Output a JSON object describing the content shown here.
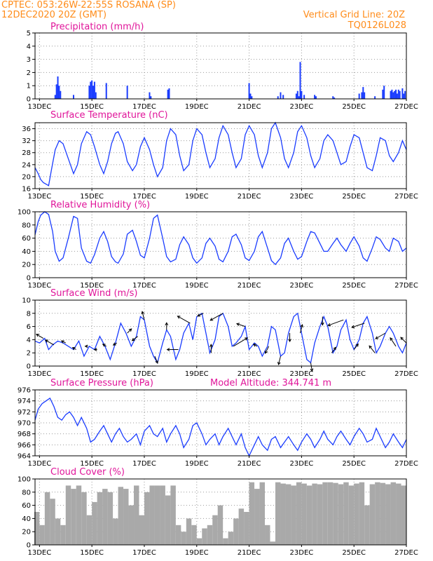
{
  "header": {
    "line1_left": "CPTEC:   053:26W-22:55S   ROSANA (SP)",
    "line2_left": "12DEC2020 20Z (GMT)",
    "line1_right": "Vertical Grid Line: 20Z",
    "line2_right": "TQ0126L028"
  },
  "colors": {
    "header": "#ff8c1a",
    "titles": "#e0159a",
    "precip": "#1a3cff",
    "line": "#1a3cff",
    "cloud": "#a9a9a9",
    "grid": "#999999"
  },
  "chart_data": [
    {
      "type": "bar",
      "title": "Precipitation (mm/h)",
      "x_range_days": [
        12.83,
        27.0
      ],
      "ylim": [
        0,
        5
      ],
      "yticks": [
        0,
        1,
        2,
        3,
        4,
        5
      ],
      "xtick_labels": [
        "13DEC",
        "15DEC",
        "17DEC",
        "19DEC",
        "21DEC",
        "23DEC",
        "25DEC",
        "27DEC"
      ],
      "x": [
        13.6,
        13.65,
        13.7,
        13.75,
        13.8,
        14.3,
        14.9,
        14.95,
        15.0,
        15.05,
        15.1,
        15.15,
        15.55,
        16.35,
        17.2,
        17.25,
        17.9,
        17.95,
        21.0,
        21.05,
        21.1,
        22.1,
        22.2,
        22.3,
        22.8,
        22.85,
        22.9,
        22.95,
        23.0,
        23.1,
        23.5,
        23.55,
        24.2,
        24.25,
        25.2,
        25.3,
        25.35,
        25.4,
        25.8,
        26.1,
        26.15,
        26.4,
        26.45,
        26.5,
        26.55,
        26.6,
        26.65,
        26.7,
        26.75,
        26.85,
        26.9,
        26.95
      ],
      "values": [
        0.3,
        1.1,
        1.7,
        1.0,
        0.6,
        0.3,
        1.0,
        1.3,
        1.4,
        1.0,
        1.3,
        0.5,
        1.2,
        1.0,
        0.5,
        0.2,
        0.7,
        0.8,
        1.2,
        0.4,
        0.2,
        0.2,
        0.5,
        0.3,
        0.4,
        0.6,
        0.2,
        2.8,
        0.6,
        0.3,
        0.3,
        0.2,
        0.2,
        0.1,
        0.4,
        0.5,
        0.9,
        0.5,
        0.2,
        0.7,
        1.0,
        0.6,
        0.7,
        0.5,
        0.6,
        0.7,
        0.4,
        0.7,
        0.6,
        0.8,
        0.4,
        0.6
      ]
    },
    {
      "type": "line",
      "title": "Surface Temperature (nC)",
      "x_range_days": [
        12.83,
        27.0
      ],
      "ylim": [
        16,
        38
      ],
      "yticks": [
        16,
        20,
        24,
        28,
        32,
        36
      ],
      "xtick_labels": [
        "13DEC",
        "15DEC",
        "17DEC",
        "19DEC",
        "21DEC",
        "23DEC",
        "25DEC",
        "27DEC"
      ],
      "x": [
        12.83,
        12.95,
        13.05,
        13.15,
        13.25,
        13.35,
        13.45,
        13.6,
        13.75,
        13.9,
        14.1,
        14.3,
        14.45,
        14.6,
        14.8,
        14.95,
        15.1,
        15.3,
        15.45,
        15.6,
        15.75,
        15.9,
        16.0,
        16.2,
        16.35,
        16.55,
        16.7,
        16.85,
        17.0,
        17.2,
        17.35,
        17.5,
        17.7,
        17.85,
        18.0,
        18.2,
        18.35,
        18.5,
        18.7,
        18.85,
        19.0,
        19.2,
        19.35,
        19.5,
        19.7,
        19.85,
        20.0,
        20.2,
        20.35,
        20.5,
        20.7,
        20.85,
        21.0,
        21.2,
        21.35,
        21.5,
        21.7,
        21.85,
        22.0,
        22.2,
        22.35,
        22.5,
        22.7,
        22.85,
        23.0,
        23.2,
        23.35,
        23.5,
        23.7,
        23.85,
        24.0,
        24.2,
        24.35,
        24.5,
        24.7,
        24.85,
        25.0,
        25.2,
        25.35,
        25.5,
        25.7,
        25.85,
        26.0,
        26.2,
        26.35,
        26.5,
        26.7,
        26.85,
        27.0
      ],
      "values": [
        23,
        21,
        19,
        18,
        17.5,
        17,
        22,
        29,
        32,
        31,
        26,
        21,
        24,
        31,
        35,
        34,
        30,
        24,
        21,
        25,
        31,
        34.5,
        35,
        31,
        25,
        22,
        24,
        30,
        33,
        29,
        24,
        20,
        23,
        32,
        36,
        34,
        27,
        22,
        24,
        32,
        36,
        34,
        28,
        23,
        26,
        33,
        37,
        34,
        28,
        23,
        26,
        34,
        37,
        34,
        27,
        23,
        28,
        36,
        38,
        33,
        26,
        23,
        28,
        35,
        37,
        33,
        27,
        23,
        26,
        32,
        34,
        32,
        28,
        24,
        25,
        30,
        34,
        33,
        28,
        23,
        22,
        27,
        33,
        32,
        27,
        25,
        28,
        32,
        29
      ]
    },
    {
      "type": "line",
      "title": "Relative Humidity (%)",
      "x_range_days": [
        12.83,
        27.0
      ],
      "ylim": [
        0,
        100
      ],
      "yticks": [
        0,
        20,
        40,
        60,
        80,
        100
      ],
      "xtick_labels": [
        "13DEC",
        "15DEC",
        "17DEC",
        "19DEC",
        "21DEC",
        "23DEC",
        "25DEC",
        "27DEC"
      ],
      "x": [
        12.83,
        12.95,
        13.05,
        13.2,
        13.35,
        13.5,
        13.6,
        13.75,
        13.9,
        14.1,
        14.3,
        14.45,
        14.6,
        14.8,
        14.95,
        15.1,
        15.3,
        15.45,
        15.6,
        15.75,
        15.9,
        16.0,
        16.2,
        16.35,
        16.55,
        16.7,
        16.85,
        17.0,
        17.2,
        17.35,
        17.5,
        17.7,
        17.85,
        18.0,
        18.2,
        18.35,
        18.5,
        18.7,
        18.85,
        19.0,
        19.2,
        19.35,
        19.5,
        19.7,
        19.85,
        20.0,
        20.2,
        20.35,
        20.5,
        20.7,
        20.85,
        21.0,
        21.2,
        21.35,
        21.5,
        21.7,
        21.85,
        22.0,
        22.2,
        22.35,
        22.5,
        22.7,
        22.85,
        23.0,
        23.2,
        23.35,
        23.5,
        23.7,
        23.85,
        24.0,
        24.2,
        24.35,
        24.5,
        24.7,
        24.85,
        25.0,
        25.2,
        25.35,
        25.5,
        25.7,
        25.85,
        26.0,
        26.2,
        26.35,
        26.5,
        26.7,
        26.85,
        27.0
      ],
      "values": [
        65,
        85,
        95,
        100,
        96,
        70,
        40,
        25,
        30,
        60,
        93,
        90,
        45,
        25,
        22,
        35,
        60,
        70,
        55,
        32,
        24,
        22,
        36,
        66,
        72,
        55,
        34,
        30,
        60,
        90,
        95,
        60,
        32,
        24,
        28,
        50,
        62,
        50,
        30,
        22,
        30,
        52,
        60,
        48,
        28,
        24,
        40,
        62,
        66,
        50,
        30,
        26,
        40,
        62,
        70,
        45,
        26,
        20,
        30,
        52,
        60,
        40,
        28,
        32,
        55,
        70,
        68,
        52,
        40,
        40,
        52,
        60,
        50,
        40,
        52,
        62,
        48,
        30,
        25,
        45,
        62,
        58,
        45,
        40,
        60,
        55,
        40,
        45
      ]
    },
    {
      "type": "line",
      "title": "Surface Wind (m/s)",
      "x_range_days": [
        12.83,
        27.0
      ],
      "ylim": [
        0,
        10
      ],
      "yticks": [
        0,
        2,
        4,
        6,
        8,
        10
      ],
      "xtick_labels": [
        "13DEC",
        "15DEC",
        "17DEC",
        "19DEC",
        "21DEC",
        "23DEC",
        "25DEC",
        "27DEC"
      ],
      "x": [
        12.83,
        13.0,
        13.2,
        13.35,
        13.5,
        13.7,
        13.9,
        14.1,
        14.3,
        14.5,
        14.7,
        14.9,
        15.1,
        15.3,
        15.5,
        15.7,
        15.9,
        16.1,
        16.3,
        16.5,
        16.7,
        16.85,
        17.0,
        17.2,
        17.35,
        17.5,
        17.7,
        17.85,
        18.0,
        18.2,
        18.35,
        18.5,
        18.7,
        18.85,
        19.0,
        19.2,
        19.35,
        19.5,
        19.7,
        19.85,
        20.0,
        20.2,
        20.35,
        20.5,
        20.7,
        20.85,
        21.0,
        21.2,
        21.35,
        21.5,
        21.7,
        21.85,
        22.0,
        22.2,
        22.35,
        22.5,
        22.7,
        22.85,
        23.0,
        23.2,
        23.35,
        23.5,
        23.7,
        23.85,
        24.0,
        24.2,
        24.35,
        24.5,
        24.7,
        24.85,
        25.0,
        25.2,
        25.35,
        25.5,
        25.7,
        25.85,
        26.0,
        26.2,
        26.35,
        26.5,
        26.7,
        26.85,
        27.0
      ],
      "values": [
        3.8,
        3.5,
        4.2,
        2.5,
        3.2,
        3.8,
        3.5,
        3.0,
        2.5,
        3.8,
        1.5,
        3.0,
        2.5,
        4.5,
        3.0,
        1.0,
        3.5,
        6.5,
        5.0,
        3.0,
        4.5,
        7.5,
        7.0,
        3.0,
        1.5,
        0.5,
        3.5,
        5.5,
        4.5,
        1.0,
        2.5,
        5.0,
        6.5,
        4.0,
        7.5,
        8.0,
        5.0,
        2.0,
        4.0,
        7.5,
        8.0,
        6.0,
        3.0,
        3.5,
        4.5,
        6.0,
        2.5,
        3.5,
        3.0,
        1.5,
        3.0,
        6.0,
        5.5,
        1.5,
        2.0,
        5.0,
        7.5,
        8.0,
        5.0,
        1.0,
        0.5,
        3.5,
        6.0,
        7.5,
        6.0,
        2.0,
        3.0,
        5.5,
        7.0,
        4.0,
        2.5,
        4.0,
        6.5,
        7.5,
        5.0,
        2.0,
        3.0,
        5.0,
        6.0,
        5.0,
        3.0,
        2.0,
        3.5
      ]
    },
    {
      "type": "line",
      "title": "Surface Pressure (hPa)",
      "annotation": "Model Altitude: 344.741  m",
      "x_range_days": [
        12.83,
        27.0
      ],
      "ylim": [
        964,
        976
      ],
      "yticks": [
        964,
        966,
        968,
        970,
        972,
        974,
        976
      ],
      "xtick_labels": [
        "13DEC",
        "15DEC",
        "17DEC",
        "19DEC",
        "21DEC",
        "23DEC",
        "25DEC",
        "27DEC"
      ],
      "x": [
        12.83,
        12.95,
        13.1,
        13.25,
        13.4,
        13.55,
        13.7,
        13.85,
        14.0,
        14.15,
        14.3,
        14.45,
        14.6,
        14.8,
        14.95,
        15.1,
        15.3,
        15.45,
        15.6,
        15.75,
        15.9,
        16.05,
        16.2,
        16.35,
        16.5,
        16.7,
        16.85,
        17.0,
        17.2,
        17.35,
        17.5,
        17.7,
        17.85,
        18.0,
        18.2,
        18.35,
        18.5,
        18.7,
        18.85,
        19.0,
        19.2,
        19.35,
        19.5,
        19.7,
        19.85,
        20.0,
        20.2,
        20.35,
        20.5,
        20.7,
        20.85,
        21.0,
        21.2,
        21.35,
        21.5,
        21.7,
        21.85,
        22.0,
        22.2,
        22.35,
        22.5,
        22.7,
        22.85,
        23.0,
        23.2,
        23.35,
        23.5,
        23.7,
        23.85,
        24.0,
        24.2,
        24.35,
        24.5,
        24.7,
        24.85,
        25.0,
        25.2,
        25.35,
        25.5,
        25.7,
        25.85,
        26.0,
        26.2,
        26.35,
        26.5,
        26.7,
        26.85,
        27.0
      ],
      "values": [
        970.5,
        972.5,
        973.5,
        974.0,
        974.5,
        973.0,
        971.0,
        970.5,
        971.5,
        972.0,
        971.0,
        969.5,
        971.0,
        969.0,
        966.5,
        967.0,
        968.5,
        969.5,
        968.0,
        966.5,
        968.0,
        969.0,
        967.5,
        966.5,
        967.0,
        968.0,
        966.0,
        968.5,
        969.5,
        968.0,
        967.5,
        969.0,
        966.5,
        968.0,
        969.5,
        968.0,
        965.5,
        967.0,
        969.5,
        970.0,
        968.0,
        966.0,
        967.0,
        968.0,
        966.0,
        967.5,
        969.0,
        967.5,
        966.0,
        968.0,
        965.5,
        964.0,
        966.0,
        967.5,
        966.0,
        965.0,
        967.0,
        967.5,
        965.5,
        966.5,
        967.5,
        966.0,
        965.0,
        966.5,
        968.0,
        967.0,
        965.5,
        967.0,
        968.5,
        967.0,
        966.0,
        967.5,
        968.5,
        967.0,
        966.0,
        967.5,
        969.0,
        968.0,
        966.5,
        967.0,
        969.0,
        967.5,
        965.5,
        966.5,
        968.0,
        966.5,
        965.5,
        967.0
      ]
    },
    {
      "type": "bar",
      "title": "Cloud Cover (%)",
      "x_range_days": [
        12.83,
        27.0
      ],
      "ylim": [
        0,
        100
      ],
      "yticks": [
        0,
        20,
        40,
        60,
        80,
        100
      ],
      "xtick_labels": [
        "13DEC",
        "15DEC",
        "17DEC",
        "19DEC",
        "21DEC",
        "23DEC",
        "25DEC",
        "27DEC"
      ],
      "x": [
        12.9,
        13.1,
        13.3,
        13.5,
        13.7,
        13.9,
        14.1,
        14.3,
        14.5,
        14.7,
        14.9,
        15.1,
        15.3,
        15.5,
        15.7,
        15.9,
        16.1,
        16.3,
        16.5,
        16.7,
        16.9,
        17.1,
        17.3,
        17.5,
        17.7,
        17.9,
        18.1,
        18.3,
        18.5,
        18.7,
        18.9,
        19.1,
        19.3,
        19.5,
        19.7,
        19.9,
        20.1,
        20.3,
        20.5,
        20.7,
        20.9,
        21.1,
        21.3,
        21.5,
        21.7,
        21.9,
        22.1,
        22.3,
        22.5,
        22.7,
        22.9,
        23.1,
        23.3,
        23.5,
        23.7,
        23.9,
        24.1,
        24.3,
        24.5,
        24.7,
        24.9,
        25.1,
        25.3,
        25.5,
        25.7,
        25.9,
        26.1,
        26.3,
        26.5,
        26.7,
        26.9
      ],
      "values": [
        50,
        30,
        80,
        70,
        40,
        30,
        90,
        85,
        90,
        80,
        45,
        65,
        80,
        85,
        80,
        40,
        88,
        85,
        60,
        90,
        45,
        80,
        90,
        90,
        90,
        75,
        90,
        30,
        20,
        40,
        30,
        10,
        25,
        30,
        45,
        60,
        10,
        20,
        40,
        55,
        50,
        95,
        85,
        95,
        30,
        5,
        95,
        93,
        92,
        90,
        95,
        93,
        90,
        93,
        92,
        95,
        95,
        94,
        92,
        95,
        90,
        93,
        95,
        60,
        92,
        95,
        94,
        92,
        95,
        93,
        90
      ]
    }
  ],
  "wind_barbs": [
    {
      "x": 13.15,
      "dx": -10,
      "dy": -6
    },
    {
      "x": 13.55,
      "dx": -12,
      "dy": -7
    },
    {
      "x": 14.0,
      "dx": -6,
      "dy": -3
    },
    {
      "x": 14.4,
      "dx": -5,
      "dy": -3
    },
    {
      "x": 14.85,
      "dx": -4,
      "dy": 0
    },
    {
      "x": 15.2,
      "dx": -4,
      "dy": 0
    },
    {
      "x": 15.55,
      "dx": -5,
      "dy": -3
    },
    {
      "x": 15.95,
      "dx": -5,
      "dy": 3
    },
    {
      "x": 16.35,
      "dx": 6,
      "dy": -6
    },
    {
      "x": 16.75,
      "dx": -8,
      "dy": 6
    },
    {
      "x": 17.0,
      "dx": -3,
      "dy": -12
    },
    {
      "x": 17.4,
      "dx": 4,
      "dy": 10
    },
    {
      "x": 17.85,
      "dx": 0,
      "dy": -10
    },
    {
      "x": 18.3,
      "dx": -16,
      "dy": 0
    },
    {
      "x": 18.75,
      "dx": -18,
      "dy": -10
    },
    {
      "x": 19.25,
      "dx": -8,
      "dy": 4
    },
    {
      "x": 19.55,
      "dx": 0,
      "dy": -12
    },
    {
      "x": 20.0,
      "dx": -18,
      "dy": 10
    },
    {
      "x": 20.4,
      "dx": 20,
      "dy": -12
    },
    {
      "x": 20.85,
      "dx": -12,
      "dy": -4
    },
    {
      "x": 21.3,
      "dx": -5,
      "dy": -3
    },
    {
      "x": 21.75,
      "dx": -5,
      "dy": 10
    },
    {
      "x": 22.2,
      "dx": -3,
      "dy": 12
    },
    {
      "x": 22.55,
      "dx": 0,
      "dy": 12
    },
    {
      "x": 22.95,
      "dx": 3,
      "dy": -12
    },
    {
      "x": 23.35,
      "dx": 2,
      "dy": 12
    },
    {
      "x": 23.8,
      "dx": 0,
      "dy": 12
    },
    {
      "x": 24.15,
      "dx": 6,
      "dy": -8
    },
    {
      "x": 24.6,
      "dx": -22,
      "dy": 8
    },
    {
      "x": 25.0,
      "dx": 6,
      "dy": -8
    },
    {
      "x": 25.4,
      "dx": -18,
      "dy": 6
    },
    {
      "x": 25.8,
      "dx": -8,
      "dy": -10
    },
    {
      "x": 26.2,
      "dx": -14,
      "dy": 8
    },
    {
      "x": 26.6,
      "dx": -8,
      "dy": -12
    },
    {
      "x": 27.0,
      "dx": -8,
      "dy": -8
    }
  ]
}
